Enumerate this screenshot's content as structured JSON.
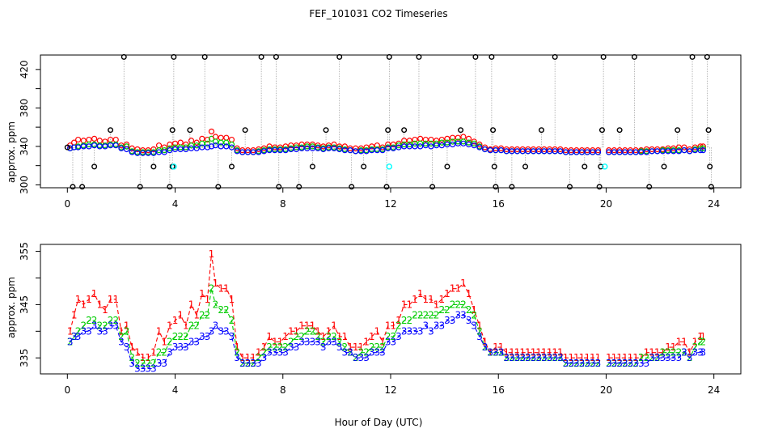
{
  "figure": {
    "title": "FEF_101031  CO2 Timeseries",
    "xlabel": "Hour of Day (UTC)"
  },
  "colors": {
    "series_1": "#ff0000",
    "series_2": "#00cc00",
    "series_3": "#0000ff",
    "black_pts": "#000000",
    "cyan_pts": "#00ffff",
    "line": "#999999",
    "axis": "#000000"
  },
  "chart_data": [
    {
      "id": "top",
      "type": "scatter",
      "title": "FEF_101031  CO2 Timeseries",
      "xlabel": "",
      "ylabel": "approx. ppm",
      "xlim": [
        -1,
        25
      ],
      "ylim": [
        297,
        435
      ],
      "xticks": [
        0,
        4,
        8,
        12,
        16,
        20,
        24
      ],
      "yticks": [
        300,
        340,
        380,
        420
      ],
      "ytick_labels": [
        "300",
        "340",
        "380",
        "420"
      ],
      "yticks_minor": [
        320,
        360,
        400
      ],
      "markers": {
        "series_1": "red circles",
        "series_2": "green circles",
        "series_3": "blue circles",
        "outliers": "black circles",
        "flagged": "cyan circles"
      },
      "black_spikes": [
        [
          0.0,
          339
        ],
        [
          0.2,
          298
        ],
        [
          0.55,
          298
        ],
        [
          1.0,
          319
        ],
        [
          1.6,
          357
        ],
        [
          2.1,
          433
        ],
        [
          2.7,
          298
        ],
        [
          3.2,
          319
        ],
        [
          3.8,
          298
        ],
        [
          3.9,
          319
        ],
        [
          3.9,
          357
        ],
        [
          3.95,
          433
        ],
        [
          5.1,
          433
        ],
        [
          4.55,
          357
        ],
        [
          5.6,
          298
        ],
        [
          6.1,
          319
        ],
        [
          6.6,
          357
        ],
        [
          7.2,
          433
        ],
        [
          7.75,
          433
        ],
        [
          7.85,
          298
        ],
        [
          8.6,
          298
        ],
        [
          9.1,
          319
        ],
        [
          9.6,
          357
        ],
        [
          10.1,
          433
        ],
        [
          10.55,
          298
        ],
        [
          11.0,
          319
        ],
        [
          11.85,
          298
        ],
        [
          11.9,
          357
        ],
        [
          11.95,
          433
        ],
        [
          12.5,
          357
        ],
        [
          13.05,
          433
        ],
        [
          13.55,
          298
        ],
        [
          14.1,
          319
        ],
        [
          14.6,
          357
        ],
        [
          15.15,
          433
        ],
        [
          15.75,
          433
        ],
        [
          15.8,
          357
        ],
        [
          15.85,
          319
        ],
        [
          15.9,
          298
        ],
        [
          16.5,
          298
        ],
        [
          17.0,
          319
        ],
        [
          17.6,
          357
        ],
        [
          18.1,
          433
        ],
        [
          18.65,
          298
        ],
        [
          19.2,
          319
        ],
        [
          19.75,
          298
        ],
        [
          19.8,
          319
        ],
        [
          19.85,
          357
        ],
        [
          19.9,
          433
        ],
        [
          20.5,
          357
        ],
        [
          21.05,
          433
        ],
        [
          21.6,
          298
        ],
        [
          22.15,
          319
        ],
        [
          22.65,
          357
        ],
        [
          23.2,
          433
        ],
        [
          23.75,
          433
        ],
        [
          23.8,
          357
        ],
        [
          23.85,
          319
        ],
        [
          23.9,
          298
        ]
      ],
      "cyan_points": [
        [
          3.95,
          319
        ],
        [
          11.95,
          319
        ],
        [
          19.95,
          319
        ]
      ]
    },
    {
      "id": "bottom",
      "type": "line",
      "xlabel": "Hour of Day (UTC)",
      "ylabel": "approx. ppm",
      "xlim": [
        -1,
        25
      ],
      "ylim": [
        332,
        356.3
      ],
      "xticks": [
        0,
        4,
        8,
        12,
        16,
        20,
        24
      ],
      "yticks": [
        335,
        345,
        355
      ],
      "ytick_labels": [
        "335",
        "345",
        "355"
      ],
      "yticks_minor": [
        340,
        350
      ],
      "legend_markers": [
        "1",
        "2",
        "3"
      ],
      "series": [
        {
          "name": "1",
          "x": [
            0.1,
            0.25,
            0.4,
            0.6,
            0.8,
            1.0,
            1.2,
            1.4,
            1.6,
            1.8,
            2.0,
            2.2,
            2.4,
            2.6,
            2.8,
            3.0,
            3.2,
            3.4,
            3.6,
            3.8,
            4.0,
            4.2,
            4.4,
            4.6,
            4.8,
            5.0,
            5.2,
            5.35,
            5.5,
            5.7,
            5.9,
            6.1,
            6.3,
            6.5,
            6.7,
            6.9,
            7.1,
            7.3,
            7.5,
            7.7,
            7.9,
            8.1,
            8.3,
            8.5,
            8.7,
            8.9,
            9.1,
            9.3,
            9.5,
            9.7,
            9.9,
            10.1,
            10.3,
            10.5,
            10.7,
            10.9,
            11.1,
            11.3,
            11.5,
            11.7,
            11.9,
            12.1,
            12.3,
            12.5,
            12.7,
            12.9,
            13.1,
            13.3,
            13.5,
            13.7,
            13.9,
            14.1,
            14.3,
            14.5,
            14.7,
            14.9,
            15.1,
            15.3,
            15.5,
            15.7,
            15.9,
            16.1,
            16.3,
            16.5,
            16.7,
            16.9,
            17.1,
            17.3,
            17.5,
            17.7,
            17.9,
            18.1,
            18.3,
            18.5,
            18.7,
            18.9,
            19.1,
            19.3,
            19.5,
            19.7,
            20.1,
            20.3,
            20.5,
            20.7,
            20.9,
            21.1,
            21.3,
            21.5,
            21.7,
            21.9,
            22.1,
            22.3,
            22.5,
            22.7,
            22.9,
            23.1,
            23.3,
            23.5,
            23.6
          ],
          "values": [
            340,
            343,
            346,
            345,
            346,
            347,
            345,
            344,
            346,
            346,
            340,
            341,
            337,
            336,
            335,
            335,
            336,
            340,
            338,
            341,
            342,
            343,
            341,
            345,
            343,
            347,
            346,
            354.5,
            349,
            348,
            348,
            346,
            337,
            335,
            335,
            335,
            336,
            337,
            339,
            338,
            338,
            339,
            340,
            340,
            341,
            341,
            341,
            340,
            339,
            340,
            341,
            339,
            339,
            337,
            337,
            337,
            338,
            339,
            340,
            338,
            341,
            341,
            342,
            345,
            345,
            346,
            347,
            346,
            346,
            345,
            346,
            347,
            348,
            348,
            349,
            347,
            344,
            341,
            338,
            336,
            337,
            337,
            336,
            336,
            336,
            336,
            336,
            336,
            336,
            336,
            336,
            336,
            336,
            335,
            335,
            335,
            335,
            335,
            335,
            335,
            335,
            335,
            335,
            335,
            335,
            335,
            335,
            336,
            336,
            336,
            336,
            337,
            337,
            338,
            338,
            336,
            338,
            339,
            339
          ]
        },
        {
          "name": "2",
          "x": [
            0.1,
            0.25,
            0.4,
            0.6,
            0.8,
            1.0,
            1.2,
            1.4,
            1.6,
            1.8,
            2.0,
            2.2,
            2.4,
            2.6,
            2.8,
            3.0,
            3.2,
            3.4,
            3.6,
            3.8,
            4.0,
            4.2,
            4.4,
            4.6,
            4.8,
            5.0,
            5.2,
            5.35,
            5.5,
            5.7,
            5.9,
            6.1,
            6.3,
            6.5,
            6.7,
            6.9,
            7.1,
            7.3,
            7.5,
            7.7,
            7.9,
            8.1,
            8.3,
            8.5,
            8.7,
            8.9,
            9.1,
            9.3,
            9.5,
            9.7,
            9.9,
            10.1,
            10.3,
            10.5,
            10.7,
            10.9,
            11.1,
            11.3,
            11.5,
            11.7,
            11.9,
            12.1,
            12.3,
            12.5,
            12.7,
            12.9,
            13.1,
            13.3,
            13.5,
            13.7,
            13.9,
            14.1,
            14.3,
            14.5,
            14.7,
            14.9,
            15.1,
            15.3,
            15.5,
            15.7,
            15.9,
            16.1,
            16.3,
            16.5,
            16.7,
            16.9,
            17.1,
            17.3,
            17.5,
            17.7,
            17.9,
            18.1,
            18.3,
            18.5,
            18.7,
            18.9,
            19.1,
            19.3,
            19.5,
            19.7,
            20.1,
            20.3,
            20.5,
            20.7,
            20.9,
            21.1,
            21.3,
            21.5,
            21.7,
            21.9,
            22.1,
            22.3,
            22.5,
            22.7,
            22.9,
            23.1,
            23.3,
            23.5,
            23.6
          ],
          "values": [
            338,
            339,
            340,
            341,
            342,
            342,
            341,
            341,
            342,
            342,
            339,
            340,
            335,
            334,
            334,
            334,
            334,
            336,
            336,
            338,
            339,
            339,
            339,
            341,
            341,
            343,
            343,
            348,
            345,
            344,
            344,
            342,
            336,
            334,
            334,
            334,
            335,
            336,
            337,
            337,
            337,
            337,
            338,
            339,
            339,
            340,
            340,
            339,
            338,
            339,
            339,
            338,
            337,
            336,
            335,
            336,
            336,
            337,
            337,
            337,
            339,
            339,
            341,
            342,
            342,
            343,
            343,
            343,
            343,
            343,
            344,
            344,
            345,
            345,
            345,
            344,
            343,
            340,
            337,
            336,
            336,
            336,
            335,
            335,
            335,
            335,
            335,
            335,
            335,
            335,
            335,
            335,
            335,
            334,
            334,
            334,
            334,
            334,
            334,
            334,
            334,
            334,
            334,
            334,
            334,
            334,
            335,
            335,
            335,
            335,
            336,
            336,
            336,
            336,
            336,
            335,
            337,
            338,
            338
          ]
        },
        {
          "name": "3",
          "x": [
            0.1,
            0.25,
            0.4,
            0.6,
            0.8,
            1.0,
            1.2,
            1.4,
            1.6,
            1.8,
            2.0,
            2.2,
            2.4,
            2.6,
            2.8,
            3.0,
            3.2,
            3.4,
            3.6,
            3.8,
            4.0,
            4.2,
            4.4,
            4.6,
            4.8,
            5.0,
            5.2,
            5.35,
            5.5,
            5.7,
            5.9,
            6.1,
            6.3,
            6.5,
            6.7,
            6.9,
            7.1,
            7.3,
            7.5,
            7.7,
            7.9,
            8.1,
            8.3,
            8.5,
            8.7,
            8.9,
            9.1,
            9.3,
            9.5,
            9.7,
            9.9,
            10.1,
            10.3,
            10.5,
            10.7,
            10.9,
            11.1,
            11.3,
            11.5,
            11.7,
            11.9,
            12.1,
            12.3,
            12.5,
            12.7,
            12.9,
            13.1,
            13.3,
            13.5,
            13.7,
            13.9,
            14.1,
            14.3,
            14.5,
            14.7,
            14.9,
            15.1,
            15.3,
            15.5,
            15.7,
            15.9,
            16.1,
            16.3,
            16.5,
            16.7,
            16.9,
            17.1,
            17.3,
            17.5,
            17.7,
            17.9,
            18.1,
            18.3,
            18.5,
            18.7,
            18.9,
            19.1,
            19.3,
            19.5,
            19.7,
            20.1,
            20.3,
            20.5,
            20.7,
            20.9,
            21.1,
            21.3,
            21.5,
            21.7,
            21.9,
            22.1,
            22.3,
            22.5,
            22.7,
            22.9,
            23.1,
            23.3,
            23.5,
            23.6
          ],
          "values": [
            338,
            339,
            339,
            340,
            340,
            341,
            340,
            340,
            341,
            341,
            338,
            337,
            334,
            333,
            333,
            333,
            333,
            334,
            334,
            336,
            337,
            337,
            337,
            338,
            338,
            339,
            339,
            340,
            341,
            340,
            340,
            339,
            335,
            334,
            334,
            334,
            334,
            335,
            336,
            336,
            336,
            336,
            337,
            337,
            338,
            338,
            338,
            338,
            337,
            338,
            338,
            337,
            336,
            336,
            335,
            335,
            335,
            336,
            336,
            336,
            338,
            338,
            339,
            340,
            340,
            340,
            340,
            341,
            340,
            341,
            341,
            342,
            342,
            343,
            343,
            342,
            341,
            339,
            337,
            336,
            336,
            336,
            335,
            335,
            335,
            335,
            335,
            335,
            335,
            335,
            335,
            335,
            335,
            334,
            334,
            334,
            334,
            334,
            334,
            334,
            334,
            334,
            334,
            334,
            334,
            334,
            334,
            334,
            335,
            335,
            335,
            335,
            335,
            335,
            336,
            335,
            336,
            336,
            336
          ]
        }
      ]
    }
  ],
  "axis_tick_labels_x": [
    "0",
    "4",
    "8",
    "12",
    "16",
    "20",
    "24"
  ]
}
